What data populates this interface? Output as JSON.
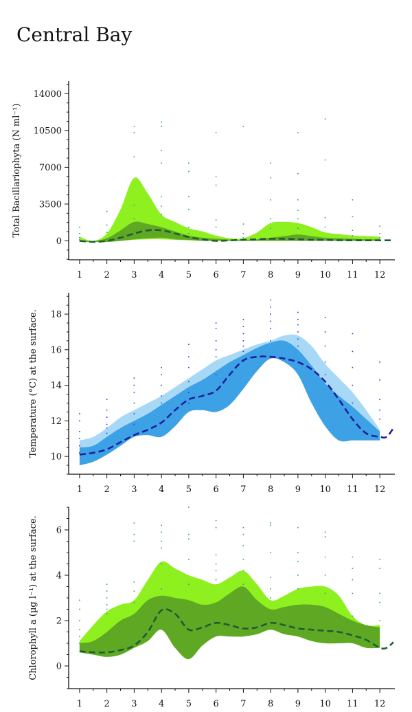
{
  "page": {
    "title": "Central Bay"
  },
  "chart_data": [
    {
      "type": "area",
      "ylabel": "Total Bacillariophyta (N ml⁻¹)",
      "x_ticks": [
        1,
        2,
        3,
        4,
        5,
        6,
        7,
        8,
        9,
        10,
        11,
        12
      ],
      "xlim": [
        0.6,
        12.55
      ],
      "ylim": [
        -1800,
        15200
      ],
      "y_ticks": [
        0,
        3500,
        7000,
        10500,
        14000
      ],
      "colors": {
        "outer": "#8ff01f",
        "inner": "#5ea824",
        "median": "#1f5c35",
        "points": "#2e9c8c"
      },
      "series": [
        {
          "name": "outer band",
          "x": [
            1,
            1.5,
            2,
            2.5,
            3,
            3.5,
            4,
            4.5,
            5,
            5.5,
            6,
            6.5,
            7,
            7.5,
            8,
            8.5,
            9,
            9.5,
            10,
            10.5,
            11,
            11.5,
            12
          ],
          "upper": [
            400,
            0,
            700,
            3000,
            6000,
            4500,
            2500,
            1800,
            1200,
            900,
            500,
            250,
            250,
            800,
            1700,
            1800,
            1700,
            1300,
            800,
            650,
            500,
            450,
            400
          ],
          "lower": [
            -100,
            -100,
            -100,
            0,
            100,
            150,
            150,
            100,
            50,
            0,
            0,
            0,
            0,
            0,
            0,
            0,
            0,
            0,
            0,
            0,
            0,
            0,
            0
          ]
        },
        {
          "name": "inner band",
          "x": [
            1,
            1.5,
            2,
            2.5,
            3,
            3.5,
            4,
            4.5,
            5,
            5.5,
            6,
            6.5,
            7,
            7.5,
            8,
            8.5,
            9,
            9.5,
            10,
            10.5,
            11,
            11.5,
            12
          ],
          "upper": [
            50,
            0,
            250,
            1000,
            1800,
            1600,
            1300,
            900,
            500,
            300,
            200,
            120,
            100,
            150,
            300,
            450,
            600,
            450,
            300,
            250,
            200,
            150,
            150
          ],
          "lower": [
            -100,
            -100,
            -100,
            0,
            150,
            250,
            300,
            150,
            100,
            0,
            0,
            0,
            0,
            0,
            0,
            0,
            0,
            0,
            0,
            0,
            0,
            0,
            0
          ]
        },
        {
          "name": "median",
          "x": [
            1,
            1.5,
            2,
            2.5,
            3,
            3.5,
            4,
            4.5,
            5,
            5.5,
            6,
            6.5,
            7,
            7.5,
            8,
            8.5,
            9,
            9.5,
            10,
            10.5,
            11,
            11.5,
            12,
            12.5
          ],
          "y": [
            0,
            -100,
            0,
            300,
            700,
            1000,
            1000,
            700,
            350,
            150,
            0,
            50,
            100,
            150,
            200,
            200,
            150,
            100,
            80,
            60,
            50,
            50,
            50,
            50
          ]
        },
        {
          "name": "observations",
          "x": [
            1,
            1,
            1,
            1,
            2,
            2,
            2,
            2,
            3,
            3,
            3,
            3,
            3,
            3,
            4,
            4,
            4,
            4,
            4,
            4,
            4,
            5,
            5,
            5,
            5,
            5,
            5,
            6,
            6,
            6,
            6,
            6,
            7,
            7,
            7,
            7,
            8,
            8,
            8,
            8,
            8,
            9,
            9,
            9,
            9,
            9,
            9,
            10,
            10,
            10,
            10,
            11,
            11,
            11,
            11,
            12,
            12,
            12
          ],
          "y": [
            1300,
            700,
            300,
            100,
            2800,
            1500,
            800,
            200,
            10900,
            10300,
            8000,
            3400,
            2100,
            900,
            11300,
            10900,
            8600,
            7400,
            4200,
            3300,
            2500,
            7400,
            6600,
            4200,
            3000,
            1300,
            700,
            10300,
            6100,
            5300,
            2000,
            1300,
            10900,
            1600,
            700,
            300,
            7400,
            6000,
            3900,
            2100,
            1200,
            10300,
            6400,
            3900,
            2900,
            2100,
            1200,
            11600,
            7700,
            2200,
            1300,
            3900,
            2300,
            1000,
            500,
            1400,
            700,
            300
          ]
        }
      ]
    },
    {
      "type": "area",
      "ylabel": "Temperature (°C) at the surface.",
      "x_ticks": [
        1,
        2,
        3,
        4,
        5,
        6,
        7,
        8,
        9,
        10,
        11,
        12
      ],
      "xlim": [
        0.6,
        12.55
      ],
      "ylim": [
        9.0,
        19.2
      ],
      "y_ticks": [
        10,
        12,
        14,
        16,
        18
      ],
      "colors": {
        "outer": "#a7d9f7",
        "inner": "#3da1e6",
        "median": "#1b1f9c",
        "points": "#2a35d0"
      },
      "series": [
        {
          "name": "outer band",
          "x": [
            1,
            1.5,
            2,
            2.5,
            3,
            3.5,
            4,
            4.5,
            5,
            5.5,
            6,
            6.5,
            7,
            7.5,
            8,
            8.5,
            9,
            9.5,
            10,
            10.5,
            11,
            11.5,
            12
          ],
          "upper": [
            10.9,
            11.1,
            11.6,
            12.2,
            12.6,
            13.0,
            13.4,
            13.9,
            14.4,
            14.9,
            15.4,
            15.7,
            16.0,
            16.3,
            16.5,
            16.8,
            16.8,
            16.2,
            15.2,
            14.4,
            13.6,
            12.6,
            11.5
          ],
          "lower": [
            9.5,
            9.7,
            10.1,
            10.6,
            11.1,
            11.2,
            11.1,
            11.7,
            12.5,
            12.6,
            12.5,
            12.9,
            13.8,
            14.8,
            15.5,
            15.3,
            14.6,
            13.0,
            11.7,
            10.9,
            10.9,
            10.9,
            10.9
          ]
        },
        {
          "name": "inner band",
          "x": [
            1,
            1.5,
            2,
            2.5,
            3,
            3.5,
            4,
            4.5,
            5,
            5.5,
            6,
            6.5,
            7,
            7.5,
            8,
            8.5,
            9,
            9.5,
            10,
            10.5,
            11,
            11.5,
            12
          ],
          "upper": [
            10.5,
            10.6,
            11.1,
            11.6,
            12.0,
            12.4,
            12.9,
            13.4,
            13.9,
            14.3,
            14.8,
            15.3,
            15.7,
            16.1,
            16.4,
            16.5,
            16.0,
            15.1,
            14.1,
            13.4,
            12.8,
            12.1,
            11.4
          ],
          "lower": [
            9.5,
            9.7,
            10.1,
            10.6,
            11.1,
            11.2,
            11.1,
            11.7,
            12.5,
            12.6,
            12.5,
            12.9,
            13.8,
            14.8,
            15.5,
            15.3,
            14.6,
            13.0,
            11.7,
            10.9,
            10.9,
            10.9,
            10.9
          ]
        },
        {
          "name": "median",
          "x": [
            1,
            1.5,
            2,
            2.5,
            3,
            3.5,
            4,
            4.5,
            5,
            5.5,
            6,
            6.5,
            7,
            7.5,
            8,
            8.5,
            9,
            9.5,
            10,
            10.5,
            11,
            11.5,
            12,
            12.25,
            12.5
          ],
          "y": [
            10.1,
            10.2,
            10.4,
            10.8,
            11.2,
            11.5,
            11.9,
            12.6,
            13.2,
            13.4,
            13.7,
            14.6,
            15.4,
            15.6,
            15.6,
            15.5,
            15.3,
            14.9,
            14.2,
            13.2,
            12.1,
            11.3,
            11.1,
            11.1,
            11.6
          ]
        },
        {
          "name": "observations",
          "x": [
            1,
            1,
            1,
            1,
            1,
            1,
            2,
            2,
            2,
            2,
            2,
            2,
            3,
            3,
            3,
            3,
            3,
            3,
            4,
            4,
            4,
            4,
            4,
            5,
            5,
            5,
            5,
            5,
            5,
            6,
            6,
            6,
            6,
            6,
            6,
            7,
            7,
            7,
            7,
            7,
            7,
            8,
            8,
            8,
            8,
            8,
            8,
            9,
            9,
            9,
            9,
            9,
            9,
            10,
            10,
            10,
            10,
            10,
            11,
            11,
            11,
            11,
            11,
            12,
            12,
            12,
            12,
            12
          ],
          "y": [
            12.4,
            12.0,
            11.4,
            11.0,
            10.6,
            10.2,
            13.2,
            12.6,
            12.2,
            11.8,
            11.6,
            11.3,
            14.4,
            14.0,
            13.6,
            13.0,
            12.4,
            11.8,
            15.0,
            14.6,
            14.0,
            13.4,
            13.0,
            16.3,
            15.6,
            15.0,
            14.2,
            13.6,
            13.0,
            17.5,
            17.2,
            16.5,
            16.0,
            15.6,
            14.6,
            17.7,
            17.3,
            16.9,
            16.5,
            16.2,
            15.9,
            18.8,
            18.4,
            18.0,
            17.6,
            17.2,
            16.5,
            18.1,
            17.7,
            17.4,
            17.0,
            16.6,
            16.2,
            17.8,
            17.0,
            16.2,
            15.3,
            14.6,
            16.9,
            15.9,
            15.0,
            14.0,
            13.0,
            15.3,
            14.3,
            13.2,
            12.6,
            12.1
          ]
        }
      ]
    },
    {
      "type": "area",
      "ylabel": "Chlorophyll a (µg l⁻¹) at the surface.",
      "x_ticks": [
        1,
        2,
        3,
        4,
        5,
        6,
        7,
        8,
        9,
        10,
        11,
        12
      ],
      "xlim": [
        0.6,
        12.55
      ],
      "ylim": [
        -1.0,
        7.0
      ],
      "y_ticks": [
        0,
        2,
        4,
        6
      ],
      "colors": {
        "outer": "#8ff01f",
        "inner": "#5ea824",
        "median": "#1f5c35",
        "points": "#2e9c8c"
      },
      "series": [
        {
          "name": "outer band",
          "x": [
            1,
            1.5,
            2,
            2.5,
            3,
            3.5,
            4,
            4.5,
            5,
            5.5,
            6,
            6.5,
            7,
            7.5,
            8,
            8.5,
            9,
            9.5,
            10,
            10.5,
            11,
            11.5,
            12
          ],
          "upper": [
            1.1,
            1.8,
            2.4,
            2.7,
            2.9,
            3.8,
            4.6,
            4.3,
            4.0,
            3.8,
            3.6,
            3.9,
            4.2,
            3.6,
            2.9,
            3.1,
            3.4,
            3.5,
            3.5,
            3.1,
            2.2,
            1.8,
            1.8
          ],
          "lower": [
            0.6,
            0.5,
            0.4,
            0.5,
            0.8,
            1.1,
            1.6,
            0.8,
            0.3,
            0.9,
            1.3,
            1.3,
            1.3,
            1.4,
            1.6,
            1.4,
            1.3,
            1.1,
            1.0,
            1.0,
            1.0,
            0.8,
            0.8
          ]
        },
        {
          "name": "inner band",
          "x": [
            1,
            1.5,
            2,
            2.5,
            3,
            3.5,
            4,
            4.5,
            5,
            5.5,
            6,
            6.5,
            7,
            7.5,
            8,
            8.5,
            9,
            9.5,
            10,
            10.5,
            11,
            11.5,
            12
          ],
          "upper": [
            1.0,
            1.1,
            1.5,
            2.0,
            2.3,
            2.9,
            3.1,
            3.0,
            2.9,
            2.7,
            2.8,
            3.2,
            3.5,
            2.9,
            2.5,
            2.6,
            2.7,
            2.7,
            2.6,
            2.3,
            2.0,
            1.8,
            1.7
          ],
          "lower": [
            0.6,
            0.5,
            0.4,
            0.5,
            0.8,
            1.1,
            1.6,
            0.8,
            0.3,
            0.9,
            1.3,
            1.3,
            1.3,
            1.4,
            1.6,
            1.4,
            1.3,
            1.1,
            1.0,
            1.0,
            1.0,
            0.8,
            0.8
          ]
        },
        {
          "name": "median",
          "x": [
            1,
            1.5,
            2,
            2.5,
            3,
            3.5,
            4,
            4.5,
            5,
            5.5,
            6,
            6.5,
            7,
            7.5,
            8,
            8.5,
            9,
            9.5,
            10,
            10.5,
            11,
            11.5,
            12,
            12.25,
            12.5
          ],
          "y": [
            0.65,
            0.6,
            0.6,
            0.7,
            0.9,
            1.5,
            2.45,
            2.3,
            1.6,
            1.7,
            1.9,
            1.8,
            1.65,
            1.7,
            1.9,
            1.8,
            1.65,
            1.6,
            1.55,
            1.5,
            1.35,
            1.15,
            0.8,
            0.8,
            1.05
          ]
        },
        {
          "name": "observations",
          "x": [
            1,
            1,
            1,
            1,
            1,
            1,
            2,
            2,
            2,
            2,
            2,
            2,
            3,
            3,
            3,
            3,
            3,
            3,
            4,
            4,
            4,
            4,
            4,
            4,
            5,
            5,
            5,
            5,
            5,
            6,
            6,
            6,
            6,
            6,
            6,
            7,
            7,
            7,
            7,
            7,
            7,
            8,
            8,
            8,
            8,
            8,
            8,
            9,
            9,
            9,
            9,
            9,
            10,
            10,
            10,
            10,
            10,
            11,
            11,
            11,
            11,
            11,
            12,
            12,
            12,
            12,
            12
          ],
          "y": [
            2.9,
            2.5,
            2.0,
            1.6,
            1.3,
            1.0,
            3.6,
            3.3,
            3.0,
            2.7,
            2.5,
            2.3,
            6.3,
            5.8,
            5.5,
            3.7,
            3.3,
            2.8,
            6.2,
            5.9,
            5.5,
            5.2,
            4.5,
            3.4,
            7.0,
            5.8,
            5.6,
            4.7,
            3.6,
            6.4,
            6.1,
            4.9,
            4.5,
            4.2,
            3.8,
            6.1,
            5.8,
            5.3,
            4.7,
            4.2,
            3.6,
            6.3,
            6.2,
            5.0,
            3.9,
            3.4,
            3.0,
            6.1,
            5.0,
            4.6,
            4.0,
            3.4,
            5.9,
            5.7,
            4.8,
            4.0,
            3.2,
            4.8,
            4.3,
            3.8,
            3.2,
            2.2,
            4.7,
            4.3,
            3.2,
            2.8,
            2.0
          ]
        }
      ]
    }
  ]
}
